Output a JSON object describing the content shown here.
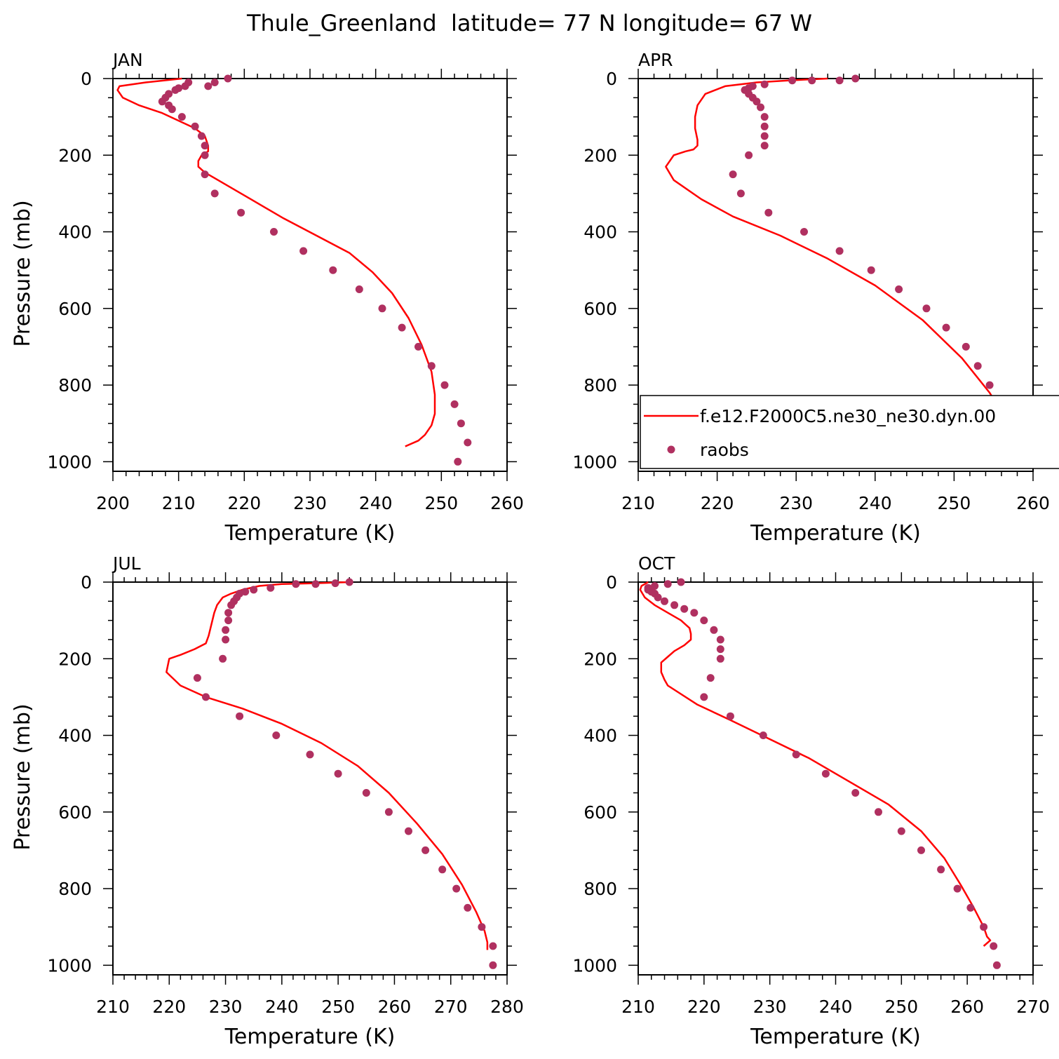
{
  "figure": {
    "title": "Thule_Greenland  latitude= 77 N longitude= 67 W"
  },
  "legend": {
    "model_label": "f.e12.F2000C5.ne30_ne30.dyn.00",
    "obs_label": "raobs",
    "location": "lower-right of APR panel"
  },
  "colors": {
    "model_line": "#ff0000",
    "obs_marker": "#b03060"
  },
  "chart_data": [
    {
      "type": "line",
      "title": "JAN",
      "xlabel": "Temperature (K)",
      "ylabel": "Pressure (mb)",
      "xlim": [
        200,
        260
      ],
      "ylim": [
        0,
        1025
      ],
      "y_inverted": true,
      "xticks": [
        200,
        210,
        220,
        230,
        240,
        250,
        260
      ],
      "yticks": [
        0,
        200,
        400,
        600,
        800,
        1000
      ],
      "series": [
        {
          "name": "f.e12.F2000C5.ne30_ne30.dyn.00",
          "style": "line",
          "x": [
            210.5,
            205,
            201,
            200.7,
            201.5,
            204,
            207.5,
            210,
            212.5,
            214,
            214.5,
            214.5,
            213.5,
            213,
            213,
            214,
            216,
            221,
            226,
            231,
            236,
            239.5,
            242.5,
            245,
            247,
            248.5,
            249,
            249,
            248.5,
            247.5,
            246.5,
            244.5
          ],
          "y": [
            0,
            10,
            20,
            30,
            50,
            70,
            90,
            110,
            130,
            150,
            175,
            190,
            200,
            215,
            230,
            245,
            265,
            315,
            365,
            410,
            455,
            505,
            560,
            625,
            695,
            765,
            825,
            875,
            905,
            930,
            945,
            960
          ]
        },
        {
          "name": "raobs",
          "style": "markers",
          "x": [
            217.5,
            215.5,
            214.5,
            211.5,
            211,
            210,
            209.5,
            208.5,
            208,
            207.5,
            208.5,
            209,
            210.5,
            212.5,
            213.5,
            214,
            214,
            214,
            215.5,
            219.5,
            224.5,
            229,
            233.5,
            237.5,
            241,
            244,
            246.5,
            248.5,
            250.5,
            252,
            253,
            254,
            252.5
          ],
          "y": [
            0,
            10,
            20,
            10,
            20,
            25,
            30,
            40,
            50,
            60,
            70,
            80,
            100,
            125,
            150,
            175,
            200,
            250,
            300,
            350,
            400,
            450,
            500,
            550,
            600,
            650,
            700,
            750,
            800,
            850,
            900,
            950,
            1000
          ]
        }
      ]
    },
    {
      "type": "line",
      "title": "APR",
      "xlabel": "Temperature (K)",
      "ylabel": "",
      "xlim": [
        210,
        260
      ],
      "ylim": [
        0,
        1025
      ],
      "y_inverted": true,
      "xticks": [
        210,
        220,
        230,
        240,
        250,
        260
      ],
      "yticks": [
        0,
        200,
        400,
        600,
        800,
        1000
      ],
      "series": [
        {
          "name": "f.e12.F2000C5.ne30_ne30.dyn.00",
          "style": "line",
          "x": [
            234,
            229,
            225,
            221,
            218.5,
            217.5,
            217.2,
            217.2,
            217.5,
            217.5,
            217,
            216,
            214.5,
            213.5,
            214.5,
            218,
            222,
            228,
            234,
            240,
            246,
            251,
            254.5,
            256,
            256.5,
            256.2,
            255.5,
            254
          ],
          "y": [
            0,
            5,
            10,
            20,
            40,
            70,
            100,
            130,
            160,
            175,
            185,
            190,
            200,
            230,
            265,
            315,
            360,
            410,
            470,
            540,
            630,
            730,
            820,
            870,
            900,
            930,
            950,
            960
          ]
        },
        {
          "name": "raobs",
          "style": "markers",
          "x": [
            237.5,
            235.5,
            232,
            229.5,
            226,
            224.5,
            224,
            223.5,
            224,
            224.5,
            225,
            225.5,
            226,
            226,
            226,
            226,
            224,
            222,
            223,
            226.5,
            231,
            235.5,
            239.5,
            243,
            246.5,
            249,
            251.5,
            253,
            254.5,
            256,
            257,
            257
          ],
          "y": [
            0,
            5,
            5,
            5,
            15,
            20,
            25,
            30,
            40,
            50,
            60,
            75,
            100,
            125,
            150,
            175,
            200,
            250,
            300,
            350,
            400,
            450,
            500,
            550,
            600,
            650,
            700,
            750,
            800,
            850,
            950,
            1000
          ]
        }
      ]
    },
    {
      "type": "line",
      "title": "JUL",
      "xlabel": "Temperature (K)",
      "ylabel": "Pressure (mb)",
      "xlim": [
        210,
        280
      ],
      "ylim": [
        0,
        1025
      ],
      "y_inverted": true,
      "xticks": [
        210,
        220,
        230,
        240,
        250,
        260,
        270,
        280
      ],
      "yticks": [
        0,
        200,
        400,
        600,
        800,
        1000
      ],
      "series": [
        {
          "name": "f.e12.F2000C5.ne30_ne30.dyn.00",
          "style": "line",
          "x": [
            252,
            246,
            240,
            236,
            233,
            231,
            229.5,
            228.5,
            228,
            227.5,
            227,
            226.5,
            224.5,
            222,
            220,
            219.5,
            222,
            226.5,
            233,
            240,
            247,
            253.5,
            259,
            264,
            268.5,
            272,
            274.5,
            276,
            276.5,
            276.5
          ],
          "y": [
            0,
            3,
            5,
            10,
            20,
            30,
            40,
            60,
            80,
            110,
            140,
            160,
            175,
            190,
            200,
            235,
            270,
            300,
            330,
            370,
            420,
            480,
            550,
            630,
            710,
            790,
            860,
            910,
            940,
            960
          ]
        },
        {
          "name": "raobs",
          "style": "markers",
          "x": [
            252,
            249.5,
            246,
            242.5,
            238,
            235,
            233.5,
            232.5,
            232,
            231.5,
            231,
            230.5,
            230.5,
            230,
            230,
            229.5,
            225,
            226.5,
            232.5,
            239,
            245,
            250,
            255,
            259,
            262.5,
            265.5,
            268.5,
            271,
            273,
            275.5,
            277.5,
            277.5
          ],
          "y": [
            0,
            3,
            5,
            5,
            15,
            20,
            25,
            30,
            40,
            50,
            60,
            80,
            100,
            125,
            150,
            200,
            250,
            300,
            350,
            400,
            450,
            500,
            550,
            600,
            650,
            700,
            750,
            800,
            850,
            900,
            950,
            1000
          ]
        }
      ]
    },
    {
      "type": "line",
      "title": "OCT",
      "xlabel": "Temperature (K)",
      "ylabel": "",
      "xlim": [
        210,
        270
      ],
      "ylim": [
        0,
        1025
      ],
      "y_inverted": true,
      "xticks": [
        210,
        220,
        230,
        240,
        250,
        260,
        270
      ],
      "yticks": [
        0,
        200,
        400,
        600,
        800,
        1000
      ],
      "series": [
        {
          "name": "f.e12.F2000C5.ne30_ne30.dyn.00",
          "style": "line",
          "x": [
            211.5,
            210.5,
            210.3,
            211,
            212.5,
            214.5,
            216.5,
            217.8,
            218,
            218,
            217,
            215.5,
            214.5,
            213.5,
            213.5,
            214,
            214.5,
            219,
            224,
            230,
            236,
            242,
            248,
            253,
            256.5,
            259,
            261,
            262.5,
            263,
            263.5,
            262.5
          ],
          "y": [
            0,
            10,
            20,
            40,
            60,
            80,
            100,
            120,
            135,
            150,
            165,
            180,
            195,
            210,
            235,
            255,
            270,
            320,
            360,
            410,
            460,
            520,
            580,
            650,
            720,
            790,
            850,
            900,
            925,
            935,
            950
          ]
        },
        {
          "name": "raobs",
          "style": "markers",
          "x": [
            216.5,
            214.5,
            212.5,
            211.5,
            211.5,
            212,
            212.5,
            213,
            214,
            215.5,
            217,
            218.5,
            220,
            221.5,
            222.5,
            222.5,
            222.5,
            221,
            220,
            224,
            229,
            234,
            238.5,
            243,
            246.5,
            250,
            253,
            256,
            258.5,
            260.5,
            262.5,
            264,
            264.5
          ],
          "y": [
            0,
            5,
            10,
            15,
            20,
            25,
            30,
            40,
            50,
            60,
            70,
            80,
            100,
            125,
            150,
            175,
            200,
            250,
            300,
            350,
            400,
            450,
            500,
            550,
            600,
            650,
            700,
            750,
            800,
            850,
            900,
            950,
            1000
          ]
        }
      ]
    }
  ]
}
